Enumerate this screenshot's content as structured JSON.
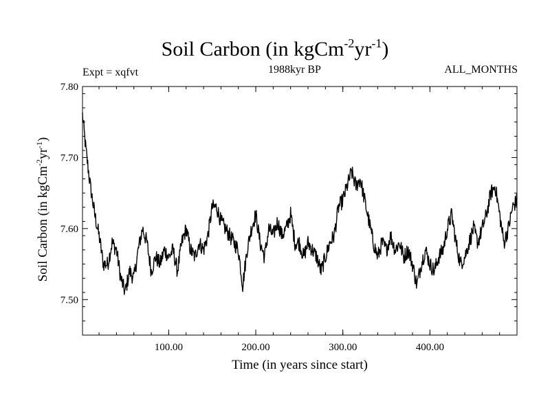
{
  "chart_data": {
    "type": "line",
    "title": {
      "base": "Soil Carbon (in kgCm",
      "sup1": "-2",
      "mid": "yr",
      "sup2": "-1",
      "end": ")"
    },
    "ylabel": {
      "base": "Soil Carbon (in kgCm",
      "sup1": "-2",
      "mid": "yr",
      "sup2": "-1",
      "end": ")"
    },
    "xlabel": "Time (in years since start)",
    "experiment": "Expt = xqfvt",
    "period": "1988kyr BP",
    "season": "ALL_MONTHS",
    "xlim": [
      1,
      500
    ],
    "ylim": [
      7.45,
      7.8
    ],
    "x_ticks": [
      100,
      200,
      300,
      400
    ],
    "x_tick_labels": [
      "100.00",
      "200.00",
      "300.00",
      "400.00"
    ],
    "y_ticks": [
      7.5,
      7.6,
      7.7,
      7.8
    ],
    "y_tick_labels": [
      "7.50",
      "7.60",
      "7.70",
      "7.80"
    ],
    "series": [
      {
        "name": "Soil Carbon",
        "color": "#000000",
        "x": [
          1,
          5,
          10,
          15,
          20,
          25,
          30,
          35,
          40,
          45,
          50,
          55,
          60,
          65,
          70,
          75,
          80,
          85,
          90,
          95,
          100,
          105,
          110,
          115,
          120,
          125,
          130,
          135,
          140,
          145,
          150,
          155,
          160,
          165,
          170,
          175,
          180,
          185,
          190,
          195,
          200,
          205,
          210,
          215,
          220,
          225,
          230,
          235,
          240,
          245,
          250,
          255,
          260,
          265,
          270,
          275,
          280,
          285,
          290,
          295,
          300,
          305,
          310,
          315,
          320,
          325,
          330,
          335,
          340,
          345,
          350,
          355,
          360,
          365,
          370,
          375,
          380,
          385,
          390,
          395,
          400,
          405,
          410,
          415,
          420,
          425,
          430,
          435,
          440,
          445,
          450,
          455,
          460,
          465,
          470,
          475,
          480,
          485,
          490,
          495,
          500
        ],
        "values": [
          7.76,
          7.71,
          7.66,
          7.62,
          7.59,
          7.55,
          7.55,
          7.58,
          7.57,
          7.53,
          7.51,
          7.54,
          7.53,
          7.57,
          7.6,
          7.58,
          7.54,
          7.56,
          7.55,
          7.57,
          7.56,
          7.57,
          7.54,
          7.58,
          7.6,
          7.57,
          7.56,
          7.58,
          7.57,
          7.59,
          7.63,
          7.63,
          7.61,
          7.6,
          7.59,
          7.58,
          7.57,
          7.52,
          7.57,
          7.6,
          7.62,
          7.58,
          7.56,
          7.6,
          7.59,
          7.61,
          7.59,
          7.6,
          7.62,
          7.58,
          7.58,
          7.56,
          7.58,
          7.57,
          7.56,
          7.54,
          7.56,
          7.58,
          7.59,
          7.63,
          7.64,
          7.66,
          7.68,
          7.66,
          7.67,
          7.64,
          7.61,
          7.58,
          7.56,
          7.58,
          7.57,
          7.59,
          7.57,
          7.58,
          7.56,
          7.57,
          7.55,
          7.52,
          7.55,
          7.57,
          7.55,
          7.54,
          7.56,
          7.57,
          7.6,
          7.62,
          7.58,
          7.55,
          7.56,
          7.58,
          7.6,
          7.58,
          7.6,
          7.62,
          7.65,
          7.66,
          7.62,
          7.58,
          7.6,
          7.63,
          7.64
        ]
      }
    ]
  }
}
